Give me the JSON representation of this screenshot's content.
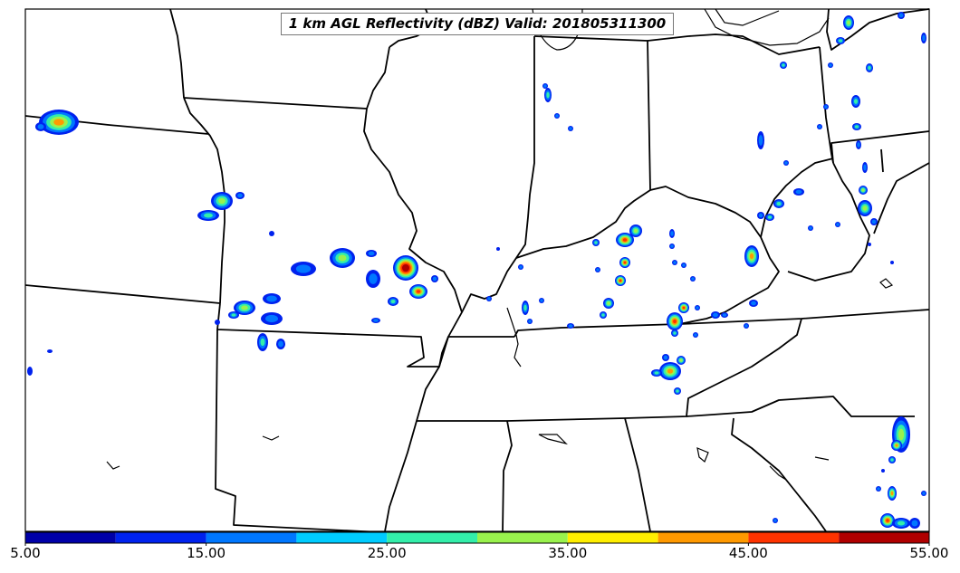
{
  "title": "1 km AGL Reflectivity (dBZ) Valid: 201805311300",
  "colorbar": {
    "min": 5.0,
    "max": 55.0,
    "tick_labels": [
      "5.00",
      "15.00",
      "25.00",
      "35.00",
      "45.00",
      "55.00"
    ],
    "bins": [
      {
        "from": 5,
        "to": 10,
        "color": "#0000a8"
      },
      {
        "from": 10,
        "to": 15,
        "color": "#0022ee"
      },
      {
        "from": 15,
        "to": 20,
        "color": "#0077ff"
      },
      {
        "from": 20,
        "to": 25,
        "color": "#00ccff"
      },
      {
        "from": 25,
        "to": 30,
        "color": "#33eeaa"
      },
      {
        "from": 30,
        "to": 35,
        "color": "#99f24d"
      },
      {
        "from": 35,
        "to": 40,
        "color": "#ffee00"
      },
      {
        "from": 40,
        "to": 45,
        "color": "#ff9900"
      },
      {
        "from": 45,
        "to": 50,
        "color": "#ff3300"
      },
      {
        "from": 50,
        "to": 55,
        "color": "#b00000"
      }
    ]
  },
  "map_features": [
    "state-boundaries",
    "coastline",
    "great-lakes-shore"
  ]
}
